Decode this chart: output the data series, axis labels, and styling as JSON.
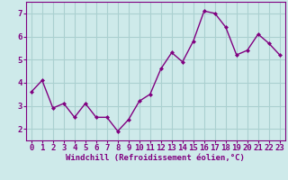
{
  "x": [
    0,
    1,
    2,
    3,
    4,
    5,
    6,
    7,
    8,
    9,
    10,
    11,
    12,
    13,
    14,
    15,
    16,
    17,
    18,
    19,
    20,
    21,
    22,
    23
  ],
  "y": [
    3.6,
    4.1,
    2.9,
    3.1,
    2.5,
    3.1,
    2.5,
    2.5,
    1.9,
    2.4,
    3.2,
    3.5,
    4.6,
    5.3,
    4.9,
    5.8,
    7.1,
    7.0,
    6.4,
    5.2,
    5.4,
    6.1,
    5.7,
    5.2
  ],
  "line_color": "#800080",
  "marker": "D",
  "marker_size": 2.0,
  "line_width": 1.0,
  "bg_color": "#ceeaea",
  "grid_color": "#aad0d0",
  "xlabel": "Windchill (Refroidissement éolien,°C)",
  "xlabel_color": "#800080",
  "xlabel_fontsize": 6.5,
  "tick_color": "#800080",
  "tick_fontsize": 6.5,
  "ylim": [
    1.5,
    7.5
  ],
  "yticks": [
    2,
    3,
    4,
    5,
    6,
    7
  ],
  "xlim": [
    -0.5,
    23.5
  ],
  "xticks": [
    0,
    1,
    2,
    3,
    4,
    5,
    6,
    7,
    8,
    9,
    10,
    11,
    12,
    13,
    14,
    15,
    16,
    17,
    18,
    19,
    20,
    21,
    22,
    23
  ]
}
